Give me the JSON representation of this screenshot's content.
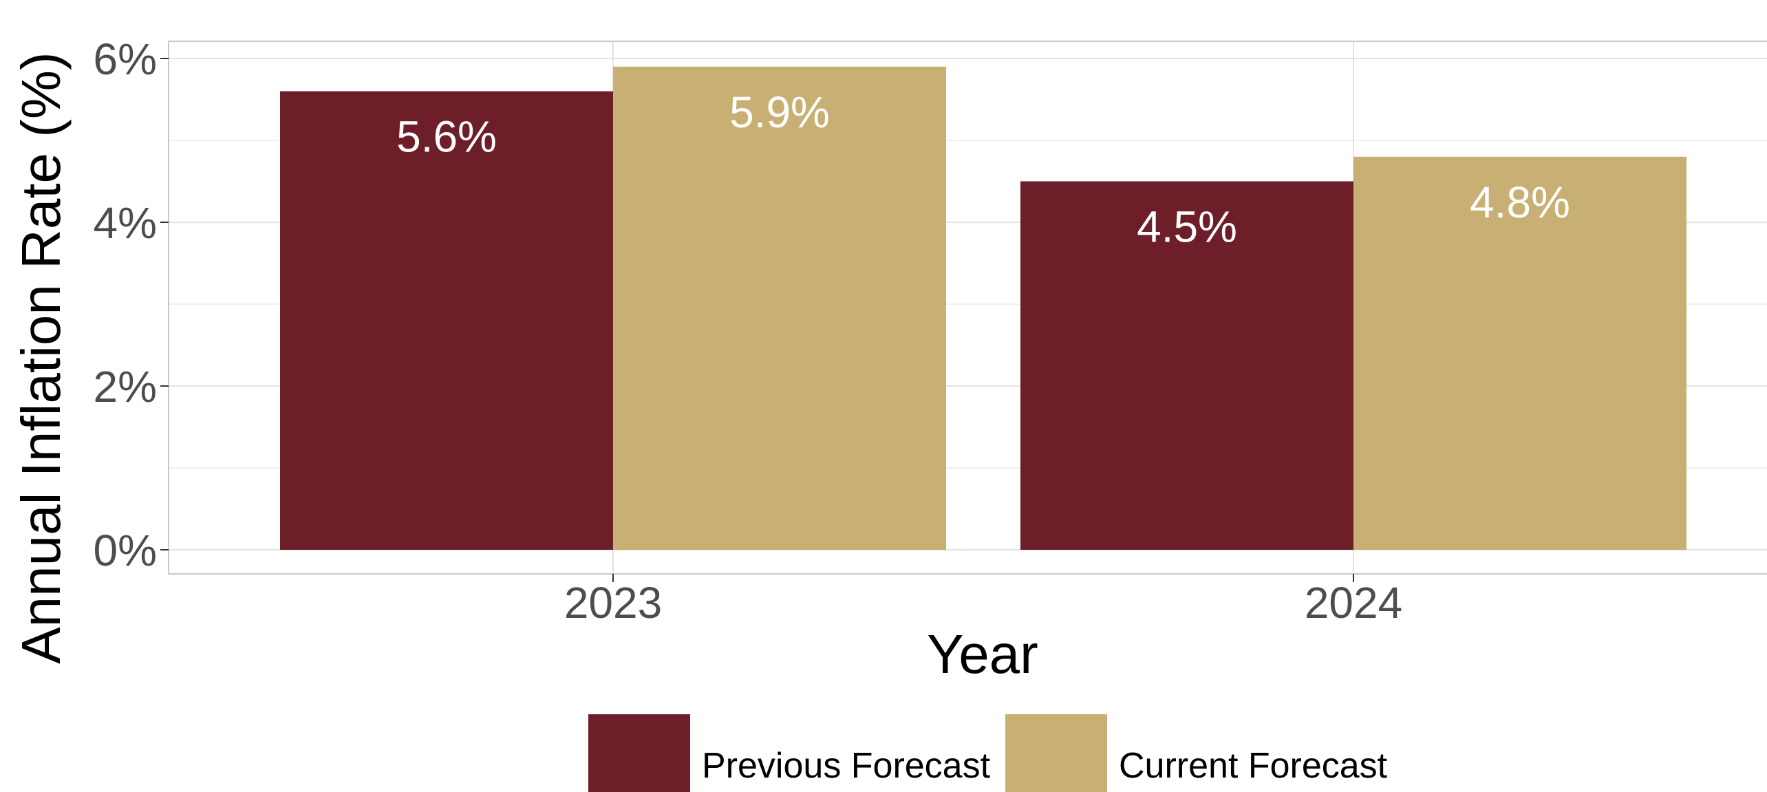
{
  "chart_data": {
    "type": "bar",
    "categories": [
      "2023",
      "2024"
    ],
    "series": [
      {
        "name": "Previous Forecast",
        "values": [
          5.6,
          4.5
        ],
        "labels": [
          "5.6%",
          "4.5%"
        ],
        "color": "#6d1e28"
      },
      {
        "name": "Current Forecast",
        "values": [
          5.9,
          4.8
        ],
        "labels": [
          "5.9%",
          "4.8%"
        ],
        "color": "#c8b075"
      }
    ],
    "xlabel": "Year",
    "ylabel": "Annual Inflation Rate (%)",
    "ylim": [
      -0.3,
      6.2
    ],
    "yticks": [
      0,
      2,
      4,
      6
    ],
    "ytick_labels": [
      "0%",
      "2%",
      "4%",
      "6%"
    ],
    "grid": true,
    "legend_position": "bottom"
  }
}
